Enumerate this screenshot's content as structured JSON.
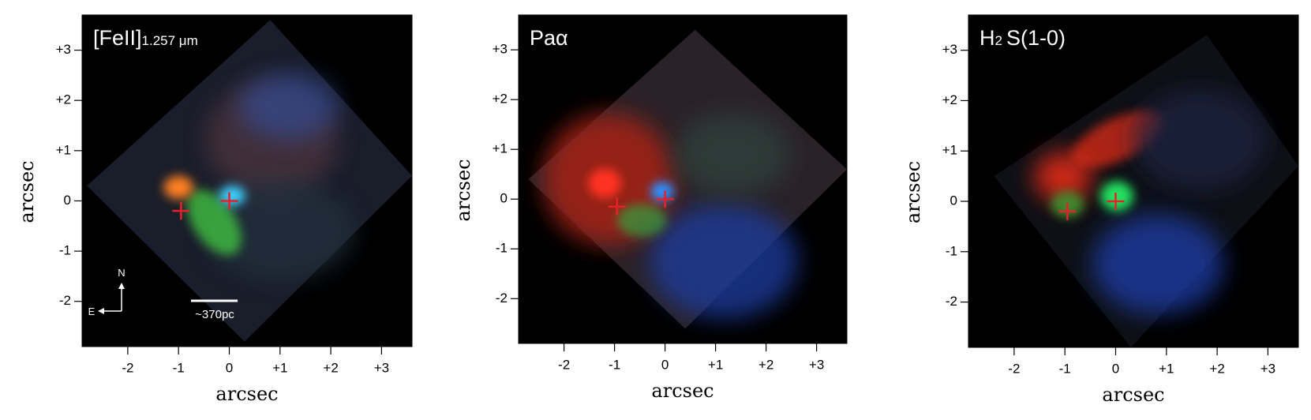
{
  "panels": [
    {
      "title": {
        "main": "[FeII]",
        "small": "1.257 μm"
      },
      "xlabel": "arcsec",
      "ylabel": "arcsec",
      "xlim": [
        -2.9,
        3.6
      ],
      "ylim": [
        -2.9,
        3.7
      ],
      "xticks": [
        -2,
        -1,
        0,
        {
          "value": 1,
          "label": "+1"
        },
        {
          "value": 2,
          "label": "+2"
        },
        {
          "value": 3,
          "label": "+3"
        }
      ],
      "yticks": [
        -2,
        -1,
        0,
        {
          "value": 1,
          "label": "+1"
        },
        {
          "value": 2,
          "label": "+2"
        },
        {
          "value": 3,
          "label": "+3"
        }
      ],
      "markers": {
        "x": [
          0,
          -0.95
        ],
        "y": [
          0,
          -0.2
        ],
        "color": "#e8202a"
      },
      "compass": {
        "north": "N",
        "east": "E"
      },
      "scale_bar": "~370pc"
    },
    {
      "title": {
        "main": "Paα"
      },
      "xlabel": "arcsec",
      "ylabel": "arcsec",
      "xlim": [
        -2.9,
        3.6
      ],
      "ylim": [
        -2.9,
        3.7
      ],
      "xticks": [
        -2,
        -1,
        0,
        {
          "value": 1,
          "label": "+1"
        },
        {
          "value": 2,
          "label": "+2"
        },
        {
          "value": 3,
          "label": "+3"
        }
      ],
      "yticks": [
        -2,
        -1,
        0,
        {
          "value": 1,
          "label": "+1"
        },
        {
          "value": 2,
          "label": "+2"
        },
        {
          "value": 3,
          "label": "+3"
        }
      ],
      "markers": {
        "x": [
          0,
          -0.95
        ],
        "y": [
          0,
          -0.15
        ],
        "color": "#e8202a"
      }
    },
    {
      "title": {
        "main": "H",
        "small": "2",
        "rest": "S(1-0)"
      },
      "xlabel": "arcsec",
      "ylabel": "arcsec",
      "xlim": [
        -2.9,
        3.6
      ],
      "ylim": [
        -2.9,
        3.7
      ],
      "xticks": [
        -2,
        -1,
        0,
        {
          "value": 1,
          "label": "+1"
        },
        {
          "value": 2,
          "label": "+2"
        },
        {
          "value": 3,
          "label": "+3"
        }
      ],
      "yticks": [
        -2,
        -1,
        0,
        {
          "value": 1,
          "label": "+1"
        },
        {
          "value": 2,
          "label": "+2"
        },
        {
          "value": 3,
          "label": "+3"
        }
      ],
      "markers": {
        "x": [
          0,
          -0.95
        ],
        "y": [
          0,
          -0.2
        ],
        "color": "#e8202a"
      }
    }
  ]
}
